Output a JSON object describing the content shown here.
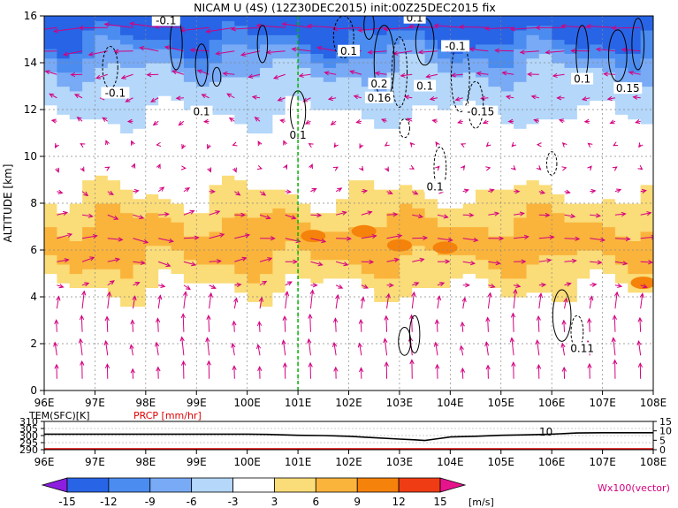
{
  "title": "NICAM U (4S) (12Z30DEC2015) init:00Z25DEC2015 fix",
  "chart_data": [
    {
      "type": "heatmap",
      "name": "zonal-wind-cross-section",
      "variable": "U",
      "ylabel": "ALTITUDE [km]",
      "x_ticks": [
        "96E",
        "97E",
        "98E",
        "99E",
        "100E",
        "101E",
        "102E",
        "103E",
        "104E",
        "105E",
        "106E",
        "107E",
        "108E"
      ],
      "xlim": [
        96,
        108
      ],
      "y_ticks": [
        "0",
        "2",
        "4",
        "6",
        "8",
        "10",
        "12",
        "14",
        "16"
      ],
      "ylim": [
        0,
        16
      ],
      "grid": true,
      "marker_longitude": 101,
      "band_rows": [
        {
          "z": 15.6,
          "u": -15
        },
        {
          "z": 15.0,
          "u": -12
        },
        {
          "z": 14.4,
          "u": -9
        },
        {
          "z": 13.6,
          "u": -6
        },
        {
          "z": 12.8,
          "u": -4
        },
        {
          "z": 11.8,
          "u": -3
        },
        {
          "z": 10.6,
          "u": -1
        },
        {
          "z": 9.4,
          "u": 1
        },
        {
          "z": 8.4,
          "u": 3
        },
        {
          "z": 7.6,
          "u": 5
        },
        {
          "z": 6.9,
          "u": 7
        },
        {
          "z": 6.2,
          "u": 8
        },
        {
          "z": 5.5,
          "u": 6
        },
        {
          "z": 4.8,
          "u": 4
        },
        {
          "z": 4.0,
          "u": 2
        },
        {
          "z": 3.0,
          "u": 0
        },
        {
          "z": 1.5,
          "u": -1
        },
        {
          "z": 0.3,
          "u": 0
        }
      ],
      "hot_spots": [
        {
          "lon": 101.3,
          "z": 6.6,
          "u": 10
        },
        {
          "lon": 102.3,
          "z": 6.8,
          "u": 10
        },
        {
          "lon": 103.0,
          "z": 6.2,
          "u": 10
        },
        {
          "lon": 103.9,
          "z": 6.1,
          "u": 10
        },
        {
          "lon": 107.8,
          "z": 4.6,
          "u": 10
        },
        {
          "lon": 96.6,
          "z": 5.8,
          "u": 7
        }
      ],
      "contour_labels": [
        {
          "lon": 98.4,
          "z": 15.8,
          "text": "-0.1"
        },
        {
          "lon": 97.4,
          "z": 12.7,
          "text": "-0.1"
        },
        {
          "lon": 99.1,
          "z": 11.9,
          "text": "0.1"
        },
        {
          "lon": 101.0,
          "z": 10.9,
          "text": "0.1"
        },
        {
          "lon": 102.0,
          "z": 14.5,
          "text": "0.1"
        },
        {
          "lon": 102.6,
          "z": 13.1,
          "text": "0.2"
        },
        {
          "lon": 102.6,
          "z": 12.5,
          "text": "0.16"
        },
        {
          "lon": 103.3,
          "z": 15.9,
          "text": "0.1"
        },
        {
          "lon": 103.5,
          "z": 13.0,
          "text": "0.1"
        },
        {
          "lon": 104.1,
          "z": 14.7,
          "text": "-0.1"
        },
        {
          "lon": 104.6,
          "z": 11.9,
          "text": "-0.15"
        },
        {
          "lon": 103.7,
          "z": 8.7,
          "text": "0.1"
        },
        {
          "lon": 106.6,
          "z": 13.3,
          "text": "0.1"
        },
        {
          "lon": 107.5,
          "z": 12.9,
          "text": "0.15"
        },
        {
          "lon": 106.6,
          "z": 1.8,
          "text": "0.11"
        }
      ],
      "contour_ovals": [
        {
          "lon": 97.3,
          "z": 13.8,
          "rx": 0.15,
          "rz": 0.9,
          "dashed": true
        },
        {
          "lon": 98.6,
          "z": 14.8,
          "rx": 0.12,
          "rz": 1.1,
          "dashed": false
        },
        {
          "lon": 99.1,
          "z": 13.9,
          "rx": 0.12,
          "rz": 0.9,
          "dashed": false
        },
        {
          "lon": 99.4,
          "z": 13.4,
          "rx": 0.08,
          "rz": 0.4,
          "dashed": false
        },
        {
          "lon": 100.3,
          "z": 14.8,
          "rx": 0.1,
          "rz": 0.8,
          "dashed": false
        },
        {
          "lon": 101.0,
          "z": 11.9,
          "rx": 0.15,
          "rz": 0.9,
          "dashed": false
        },
        {
          "lon": 101.9,
          "z": 15.1,
          "rx": 0.2,
          "rz": 0.9,
          "dashed": true
        },
        {
          "lon": 102.4,
          "z": 15.6,
          "rx": 0.1,
          "rz": 0.6,
          "dashed": false
        },
        {
          "lon": 102.7,
          "z": 14.0,
          "rx": 0.2,
          "rz": 1.6,
          "dashed": false
        },
        {
          "lon": 103.0,
          "z": 13.6,
          "rx": 0.15,
          "rz": 1.5,
          "dashed": true
        },
        {
          "lon": 103.5,
          "z": 14.9,
          "rx": 0.18,
          "rz": 1.0,
          "dashed": false
        },
        {
          "lon": 104.2,
          "z": 13.4,
          "rx": 0.18,
          "rz": 1.5,
          "dashed": true
        },
        {
          "lon": 104.5,
          "z": 12.2,
          "rx": 0.15,
          "rz": 1.0,
          "dashed": true
        },
        {
          "lon": 103.1,
          "z": 11.2,
          "rx": 0.1,
          "rz": 0.4,
          "dashed": true
        },
        {
          "lon": 103.8,
          "z": 9.5,
          "rx": 0.12,
          "rz": 0.9,
          "dashed": true
        },
        {
          "lon": 106.0,
          "z": 9.7,
          "rx": 0.1,
          "rz": 0.5,
          "dashed": true
        },
        {
          "lon": 106.6,
          "z": 14.4,
          "rx": 0.12,
          "rz": 1.2,
          "dashed": false
        },
        {
          "lon": 107.3,
          "z": 14.3,
          "rx": 0.18,
          "rz": 1.1,
          "dashed": false
        },
        {
          "lon": 107.7,
          "z": 14.8,
          "rx": 0.12,
          "rz": 1.1,
          "dashed": false
        },
        {
          "lon": 106.2,
          "z": 3.2,
          "rx": 0.18,
          "rz": 1.1,
          "dashed": false
        },
        {
          "lon": 106.5,
          "z": 2.5,
          "rx": 0.12,
          "rz": 0.7,
          "dashed": true
        },
        {
          "lon": 103.1,
          "z": 2.1,
          "rx": 0.12,
          "rz": 0.6,
          "dashed": false
        },
        {
          "lon": 103.3,
          "z": 2.4,
          "rx": 0.1,
          "rz": 0.8,
          "dashed": false
        }
      ],
      "vector_grid": {
        "lon_step": 0.5,
        "z_step": 1.0
      }
    },
    {
      "type": "line",
      "name": "surface-temperature-and-precip",
      "series_labels": [
        "TEM(SFC)[K]",
        "PRCP [mm/hr]"
      ],
      "series_colors": [
        "#000000",
        "#e00000"
      ],
      "x_ticks": [
        "96E",
        "97E",
        "98E",
        "99E",
        "100E",
        "101E",
        "102E",
        "103E",
        "104E",
        "105E",
        "106E",
        "107E",
        "108E"
      ],
      "xlim": [
        96,
        108
      ],
      "left_ticks": [
        "310",
        "305",
        "300",
        "295",
        "290"
      ],
      "left_lim": [
        290,
        310
      ],
      "right_ticks": [
        "15",
        "10",
        "5",
        "0"
      ],
      "right_lim": [
        0,
        15
      ],
      "annotation": "10",
      "temperature": [
        [
          96,
          301
        ],
        [
          97,
          301
        ],
        [
          98,
          301
        ],
        [
          99,
          301
        ],
        [
          100,
          301
        ],
        [
          100.4,
          300.8
        ],
        [
          101,
          300.2
        ],
        [
          101.5,
          300
        ],
        [
          102,
          299.5
        ],
        [
          102.5,
          298.5
        ],
        [
          103,
          297.5
        ],
        [
          103.3,
          297
        ],
        [
          103.5,
          296.5
        ],
        [
          103.7,
          297.5
        ],
        [
          104,
          299
        ],
        [
          104.5,
          299.5
        ],
        [
          105,
          300.2
        ],
        [
          105.5,
          300.5
        ],
        [
          106,
          301
        ],
        [
          106.5,
          301.8
        ],
        [
          107,
          302
        ],
        [
          107.5,
          302
        ],
        [
          108,
          302
        ]
      ],
      "precip": [
        [
          96,
          0
        ],
        [
          97,
          0
        ],
        [
          98,
          0
        ],
        [
          99,
          0
        ],
        [
          100,
          0
        ],
        [
          101,
          0
        ],
        [
          102,
          0
        ],
        [
          103,
          0
        ],
        [
          104,
          0
        ],
        [
          105,
          0
        ],
        [
          106,
          0
        ],
        [
          107,
          0
        ],
        [
          108,
          0
        ]
      ]
    },
    {
      "type": "colorbar",
      "name": "wind-speed-colorbar",
      "labels": [
        "-15",
        "-12",
        "-9",
        "-6",
        "-3",
        "3",
        "6",
        "9",
        "12",
        "15"
      ],
      "unit": "[m/s]",
      "colors": [
        "#8c1ee0",
        "#2864e6",
        "#4b8cf0",
        "#78aaf5",
        "#b4d7fa",
        "#ffffff",
        "#fadc78",
        "#fab43c",
        "#f5820a",
        "#f03c14",
        "#b40014",
        "#e6148c"
      ],
      "vector_label": "Wx100(vector)"
    }
  ]
}
